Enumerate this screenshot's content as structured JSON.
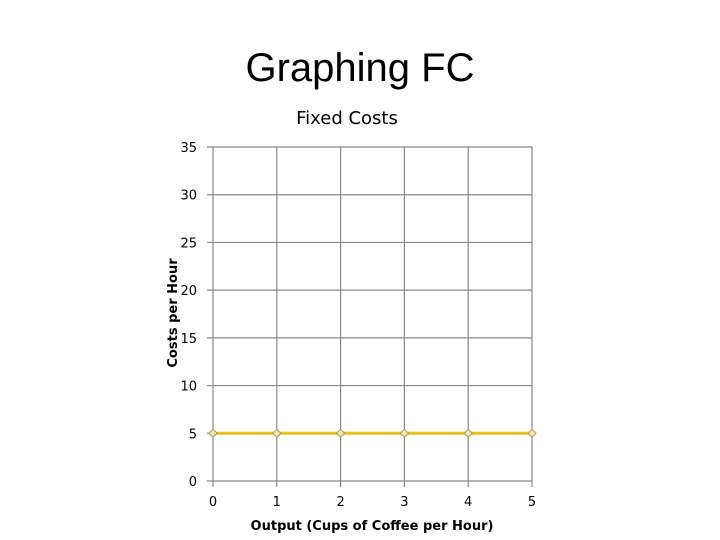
{
  "slide": {
    "title": "Graphing FC"
  },
  "chart_data": {
    "type": "line",
    "title": "Fixed Costs",
    "xlabel": "Output (Cups of Coffee per Hour)",
    "ylabel": "Costs per Hour",
    "x": [
      0,
      1,
      2,
      3,
      4,
      5
    ],
    "x_tick_labels": [
      "0",
      "1",
      "2",
      "3",
      "4",
      "5"
    ],
    "y_ticks": [
      0,
      5,
      10,
      15,
      20,
      25,
      30,
      35
    ],
    "y_tick_labels": [
      "0",
      "5",
      "10",
      "15",
      "20",
      "25",
      "30",
      "35"
    ],
    "xlim": [
      0,
      5
    ],
    "ylim": [
      0,
      35
    ],
    "grid": true,
    "legend": "none",
    "series": [
      {
        "values": [
          5,
          5,
          5,
          5,
          5,
          5
        ],
        "color": "#e8c020",
        "marker_color": "#a89a60"
      }
    ]
  }
}
